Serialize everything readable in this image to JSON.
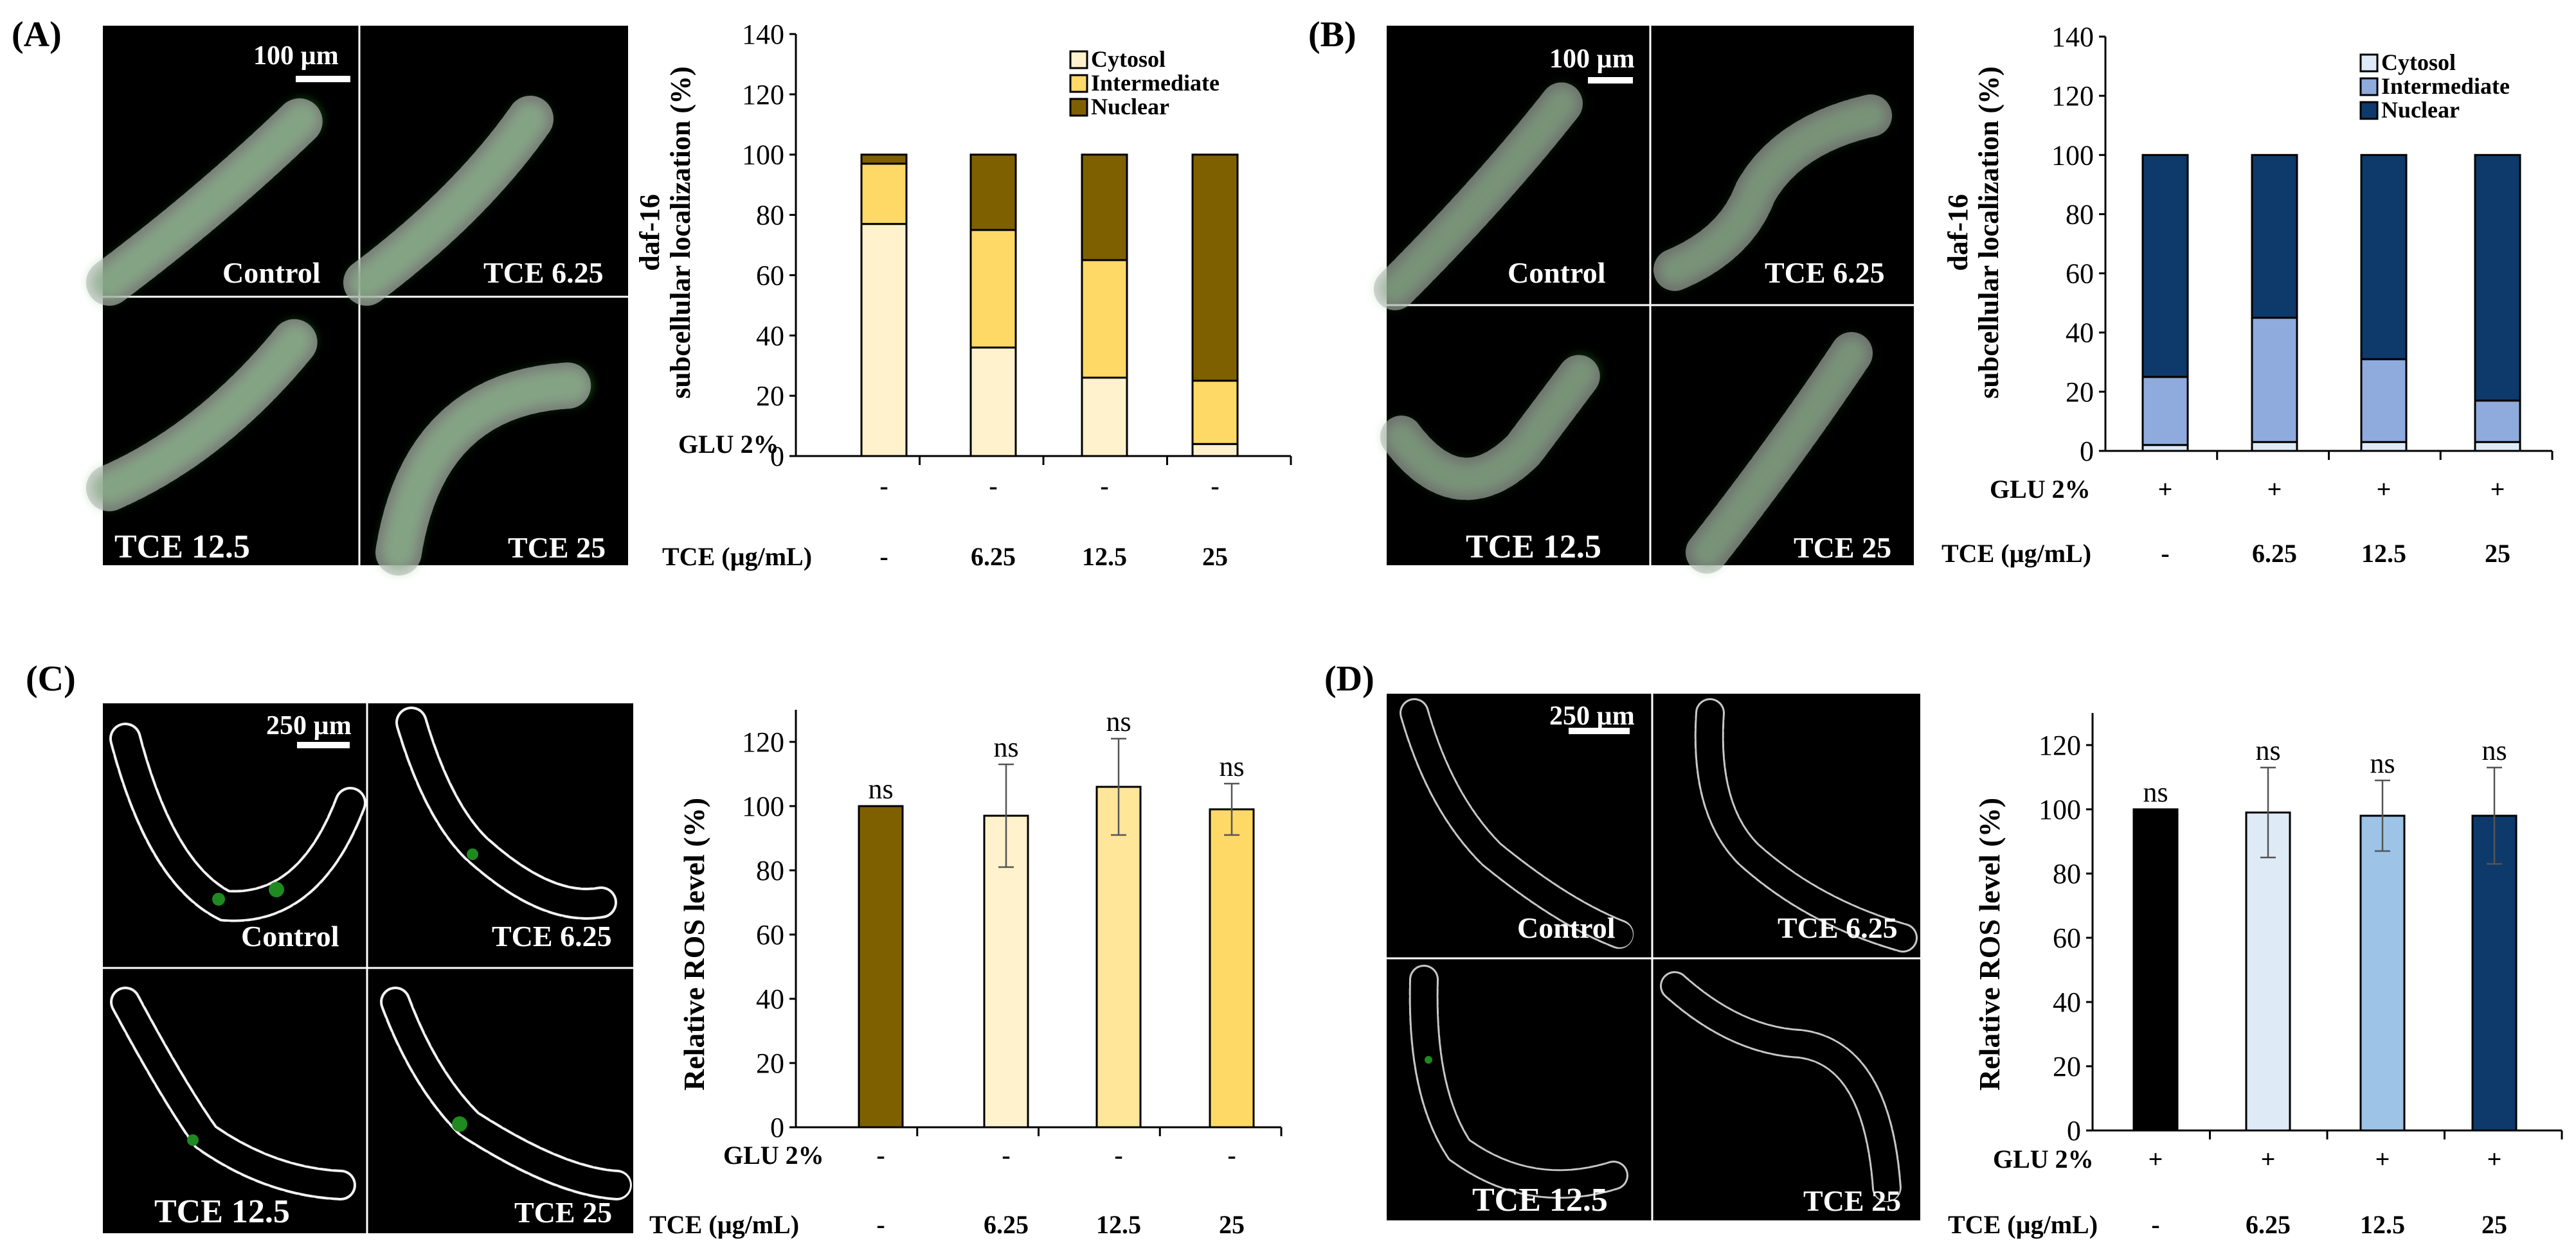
{
  "figure_labels": {
    "A": "(A)",
    "B": "(B)",
    "C": "(C)",
    "D": "(D)"
  },
  "micrographs": {
    "A": {
      "scale_bar": "100 µm",
      "captions": [
        "Control",
        "TCE 6.25",
        "TCE 12.5",
        "TCE 25"
      ]
    },
    "B": {
      "scale_bar": "100 µm",
      "captions": [
        "Control",
        "TCE 6.25",
        "TCE 12.5",
        "TCE 25"
      ]
    },
    "C": {
      "scale_bar": "250 µm",
      "captions": [
        "Control",
        "TCE 6.25",
        "TCE 12.5",
        "TCE 25"
      ]
    },
    "D": {
      "scale_bar": "250 µm",
      "captions": [
        "Control",
        "TCE 6.25",
        "TCE 12.5",
        "TCE 25"
      ]
    }
  },
  "colors": {
    "cytosol_A": "#FFF2CC",
    "intermediate_A": "#FFD966",
    "nuclear_A": "#7F6000",
    "cytosol_B": "#DEEBF7",
    "intermediate_B": "#8FAADC",
    "nuclear_B": "#0D3A6B",
    "ros_C": [
      "#7F6000",
      "#FFF2CC",
      "#FFE699",
      "#FFD966"
    ],
    "ros_D": [
      "#000000",
      "#DEEBF7",
      "#9DC3E6",
      "#0D3A6B"
    ]
  },
  "chart_data": [
    {
      "panel": "A",
      "type": "bar",
      "stacked": true,
      "categories": [
        "-",
        "6.25",
        "12.5",
        "25"
      ],
      "ylabel_line1": "daf-16",
      "ylabel_line2": "subcellular localization (%)",
      "ylim": [
        0,
        140
      ],
      "yticks": [
        "0",
        "20",
        "40",
        "60",
        "80",
        "100",
        "120",
        "140"
      ],
      "series": [
        {
          "name": "Cytosol",
          "values": [
            77,
            36,
            26,
            4
          ]
        },
        {
          "name": "Intermediate",
          "values": [
            20,
            39,
            39,
            21
          ]
        },
        {
          "name": "Nuclear",
          "values": [
            3,
            25,
            35,
            75
          ]
        }
      ],
      "legend": [
        "Cytosol",
        "Intermediate",
        "Nuclear"
      ],
      "row_labels": {
        "glu": "GLU 2%",
        "tce": "TCE (µg/mL)"
      },
      "glu_values": [
        "-",
        "-",
        "-",
        "-"
      ],
      "tce_values": [
        "-",
        "6.25",
        "12.5",
        "25"
      ]
    },
    {
      "panel": "B",
      "type": "bar",
      "stacked": true,
      "categories": [
        "-",
        "6.25",
        "12.5",
        "25"
      ],
      "ylabel_line1": "daf-16",
      "ylabel_line2": "subcellular localization (%)",
      "ylim": [
        0,
        140
      ],
      "yticks": [
        "0",
        "20",
        "40",
        "60",
        "80",
        "100",
        "120",
        "140"
      ],
      "series": [
        {
          "name": "Cytosol",
          "values": [
            2,
            3,
            3,
            3
          ]
        },
        {
          "name": "Intermediate",
          "values": [
            23,
            42,
            28,
            14
          ]
        },
        {
          "name": "Nuclear",
          "values": [
            75,
            55,
            69,
            83
          ]
        }
      ],
      "legend": [
        "Cytosol",
        "Intermediate",
        "Nuclear"
      ],
      "row_labels": {
        "glu": "GLU 2%",
        "tce": "TCE (µg/mL)"
      },
      "glu_values": [
        "+",
        "+",
        "+",
        "+"
      ],
      "tce_values": [
        "-",
        "6.25",
        "12.5",
        "25"
      ]
    },
    {
      "panel": "C",
      "type": "bar",
      "categories": [
        "-",
        "6.25",
        "12.5",
        "25"
      ],
      "ylabel": "Relative ROS level (%)",
      "ylim": [
        0,
        130
      ],
      "yticks": [
        "0",
        "20",
        "40",
        "60",
        "80",
        "100",
        "120"
      ],
      "values": [
        100,
        97,
        106,
        99
      ],
      "errors": [
        0,
        16,
        15,
        8
      ],
      "annotations": [
        "ns",
        "ns",
        "ns",
        "ns"
      ],
      "row_labels": {
        "glu": "GLU 2%",
        "tce": "TCE (µg/mL)"
      },
      "glu_values": [
        "-",
        "-",
        "-",
        "-"
      ],
      "tce_values": [
        "-",
        "6.25",
        "12.5",
        "25"
      ]
    },
    {
      "panel": "D",
      "type": "bar",
      "categories": [
        "-",
        "6.25",
        "12.5",
        "25"
      ],
      "ylabel": "Relative ROS level (%)",
      "ylim": [
        0,
        130
      ],
      "yticks": [
        "0",
        "20",
        "40",
        "60",
        "80",
        "100",
        "120"
      ],
      "values": [
        100,
        99,
        98,
        98
      ],
      "errors": [
        0,
        14,
        11,
        15
      ],
      "annotations": [
        "ns",
        "ns",
        "ns",
        "ns"
      ],
      "row_labels": {
        "glu": "GLU 2%",
        "tce": "TCE (µg/mL)"
      },
      "glu_values": [
        "+",
        "+",
        "+",
        "+"
      ],
      "tce_values": [
        "-",
        "6.25",
        "12.5",
        "25"
      ]
    }
  ]
}
